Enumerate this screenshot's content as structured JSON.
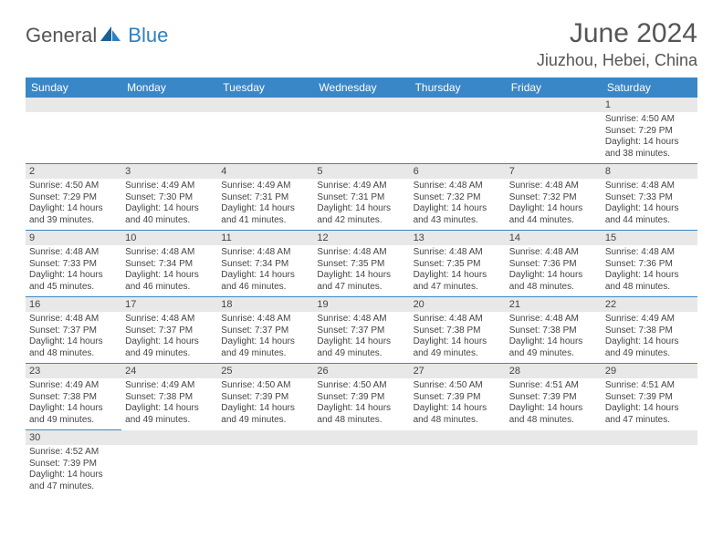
{
  "logo": {
    "text1": "General",
    "text2": "Blue"
  },
  "title": "June 2024",
  "location": "Jiuzhou, Hebei, China",
  "colors": {
    "header_bg": "#3a87c8",
    "header_fg": "#ffffff",
    "daynum_bg": "#e8e8e8",
    "border": "#3a87c8",
    "text": "#444444",
    "logo_blue": "#2f7fbf"
  },
  "weekdays": [
    "Sunday",
    "Monday",
    "Tuesday",
    "Wednesday",
    "Thursday",
    "Friday",
    "Saturday"
  ],
  "weeks": [
    [
      null,
      null,
      null,
      null,
      null,
      null,
      {
        "n": "1",
        "sunrise": "Sunrise: 4:50 AM",
        "sunset": "Sunset: 7:29 PM",
        "daylight": "Daylight: 14 hours and 38 minutes."
      }
    ],
    [
      {
        "n": "2",
        "sunrise": "Sunrise: 4:50 AM",
        "sunset": "Sunset: 7:29 PM",
        "daylight": "Daylight: 14 hours and 39 minutes."
      },
      {
        "n": "3",
        "sunrise": "Sunrise: 4:49 AM",
        "sunset": "Sunset: 7:30 PM",
        "daylight": "Daylight: 14 hours and 40 minutes."
      },
      {
        "n": "4",
        "sunrise": "Sunrise: 4:49 AM",
        "sunset": "Sunset: 7:31 PM",
        "daylight": "Daylight: 14 hours and 41 minutes."
      },
      {
        "n": "5",
        "sunrise": "Sunrise: 4:49 AM",
        "sunset": "Sunset: 7:31 PM",
        "daylight": "Daylight: 14 hours and 42 minutes."
      },
      {
        "n": "6",
        "sunrise": "Sunrise: 4:48 AM",
        "sunset": "Sunset: 7:32 PM",
        "daylight": "Daylight: 14 hours and 43 minutes."
      },
      {
        "n": "7",
        "sunrise": "Sunrise: 4:48 AM",
        "sunset": "Sunset: 7:32 PM",
        "daylight": "Daylight: 14 hours and 44 minutes."
      },
      {
        "n": "8",
        "sunrise": "Sunrise: 4:48 AM",
        "sunset": "Sunset: 7:33 PM",
        "daylight": "Daylight: 14 hours and 44 minutes."
      }
    ],
    [
      {
        "n": "9",
        "sunrise": "Sunrise: 4:48 AM",
        "sunset": "Sunset: 7:33 PM",
        "daylight": "Daylight: 14 hours and 45 minutes."
      },
      {
        "n": "10",
        "sunrise": "Sunrise: 4:48 AM",
        "sunset": "Sunset: 7:34 PM",
        "daylight": "Daylight: 14 hours and 46 minutes."
      },
      {
        "n": "11",
        "sunrise": "Sunrise: 4:48 AM",
        "sunset": "Sunset: 7:34 PM",
        "daylight": "Daylight: 14 hours and 46 minutes."
      },
      {
        "n": "12",
        "sunrise": "Sunrise: 4:48 AM",
        "sunset": "Sunset: 7:35 PM",
        "daylight": "Daylight: 14 hours and 47 minutes."
      },
      {
        "n": "13",
        "sunrise": "Sunrise: 4:48 AM",
        "sunset": "Sunset: 7:35 PM",
        "daylight": "Daylight: 14 hours and 47 minutes."
      },
      {
        "n": "14",
        "sunrise": "Sunrise: 4:48 AM",
        "sunset": "Sunset: 7:36 PM",
        "daylight": "Daylight: 14 hours and 48 minutes."
      },
      {
        "n": "15",
        "sunrise": "Sunrise: 4:48 AM",
        "sunset": "Sunset: 7:36 PM",
        "daylight": "Daylight: 14 hours and 48 minutes."
      }
    ],
    [
      {
        "n": "16",
        "sunrise": "Sunrise: 4:48 AM",
        "sunset": "Sunset: 7:37 PM",
        "daylight": "Daylight: 14 hours and 48 minutes."
      },
      {
        "n": "17",
        "sunrise": "Sunrise: 4:48 AM",
        "sunset": "Sunset: 7:37 PM",
        "daylight": "Daylight: 14 hours and 49 minutes."
      },
      {
        "n": "18",
        "sunrise": "Sunrise: 4:48 AM",
        "sunset": "Sunset: 7:37 PM",
        "daylight": "Daylight: 14 hours and 49 minutes."
      },
      {
        "n": "19",
        "sunrise": "Sunrise: 4:48 AM",
        "sunset": "Sunset: 7:37 PM",
        "daylight": "Daylight: 14 hours and 49 minutes."
      },
      {
        "n": "20",
        "sunrise": "Sunrise: 4:48 AM",
        "sunset": "Sunset: 7:38 PM",
        "daylight": "Daylight: 14 hours and 49 minutes."
      },
      {
        "n": "21",
        "sunrise": "Sunrise: 4:48 AM",
        "sunset": "Sunset: 7:38 PM",
        "daylight": "Daylight: 14 hours and 49 minutes."
      },
      {
        "n": "22",
        "sunrise": "Sunrise: 4:49 AM",
        "sunset": "Sunset: 7:38 PM",
        "daylight": "Daylight: 14 hours and 49 minutes."
      }
    ],
    [
      {
        "n": "23",
        "sunrise": "Sunrise: 4:49 AM",
        "sunset": "Sunset: 7:38 PM",
        "daylight": "Daylight: 14 hours and 49 minutes."
      },
      {
        "n": "24",
        "sunrise": "Sunrise: 4:49 AM",
        "sunset": "Sunset: 7:38 PM",
        "daylight": "Daylight: 14 hours and 49 minutes."
      },
      {
        "n": "25",
        "sunrise": "Sunrise: 4:50 AM",
        "sunset": "Sunset: 7:39 PM",
        "daylight": "Daylight: 14 hours and 49 minutes."
      },
      {
        "n": "26",
        "sunrise": "Sunrise: 4:50 AM",
        "sunset": "Sunset: 7:39 PM",
        "daylight": "Daylight: 14 hours and 48 minutes."
      },
      {
        "n": "27",
        "sunrise": "Sunrise: 4:50 AM",
        "sunset": "Sunset: 7:39 PM",
        "daylight": "Daylight: 14 hours and 48 minutes."
      },
      {
        "n": "28",
        "sunrise": "Sunrise: 4:51 AM",
        "sunset": "Sunset: 7:39 PM",
        "daylight": "Daylight: 14 hours and 48 minutes."
      },
      {
        "n": "29",
        "sunrise": "Sunrise: 4:51 AM",
        "sunset": "Sunset: 7:39 PM",
        "daylight": "Daylight: 14 hours and 47 minutes."
      }
    ],
    [
      {
        "n": "30",
        "sunrise": "Sunrise: 4:52 AM",
        "sunset": "Sunset: 7:39 PM",
        "daylight": "Daylight: 14 hours and 47 minutes."
      },
      null,
      null,
      null,
      null,
      null,
      null
    ]
  ]
}
